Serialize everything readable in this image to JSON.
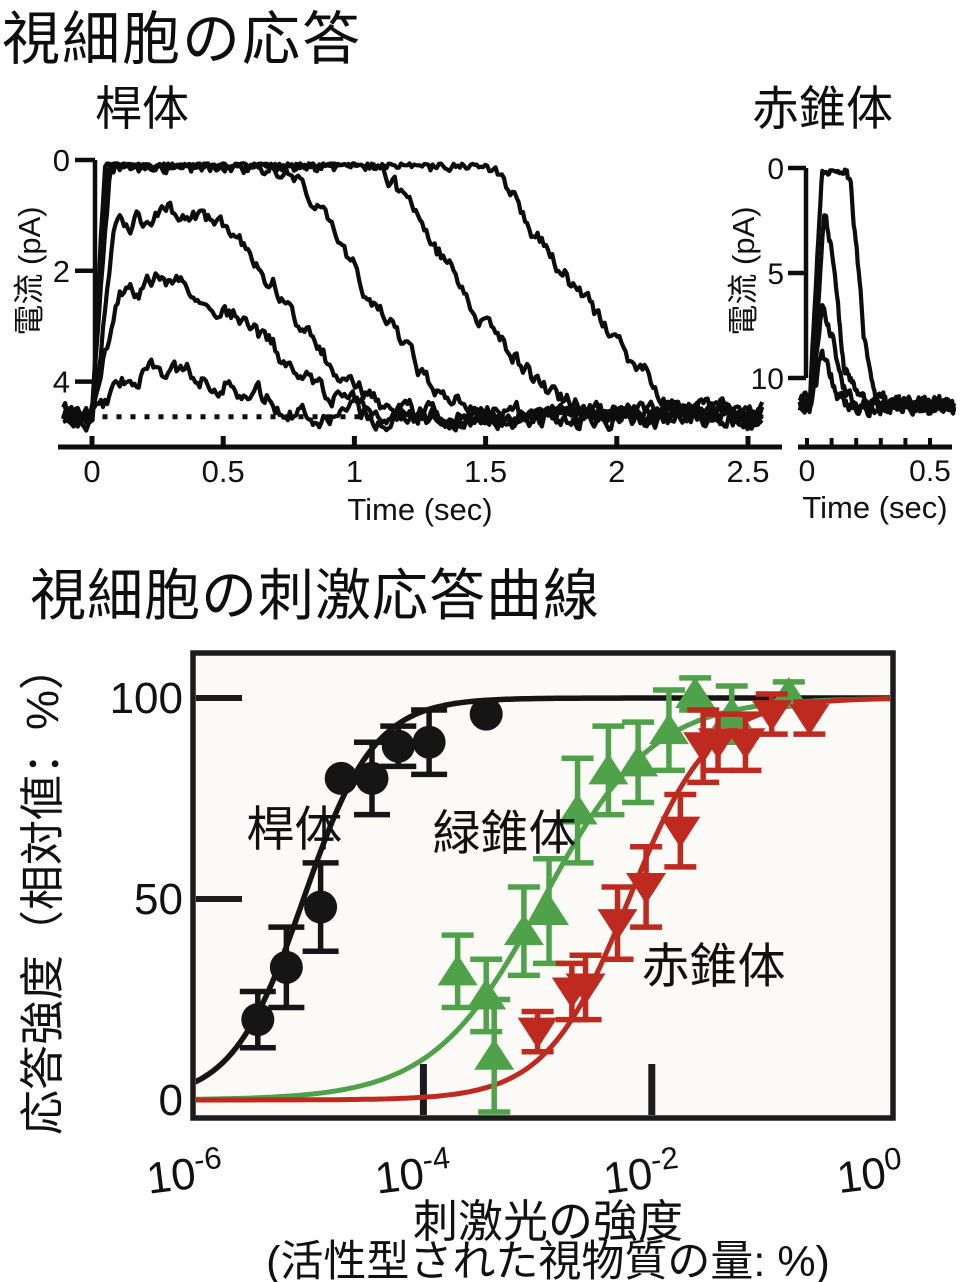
{
  "titles": {
    "main": "視細胞の応答",
    "rod": "桿体",
    "red_cone": "赤錐体",
    "section2": "視細胞の刺激応答曲線"
  },
  "colors": {
    "trace_black": "#0d0d0d",
    "rod_series": "#151515",
    "green_cone_series": "#4fa24a",
    "red_cone_series": "#bf2a20",
    "frame": "#1c1c1c",
    "plot_bg": "#fbfaf6"
  },
  "chart_data": [
    {
      "id": "rod_current_traces",
      "type": "line",
      "title": "桿体",
      "xlabel": "Time (sec)",
      "ylabel": "電流 (pA)",
      "xlim": [
        0,
        2.5
      ],
      "xticks": [
        0,
        0.5,
        1,
        1.5,
        2,
        2.5
      ],
      "xtick_labels": [
        "0",
        "0.5",
        "1",
        "1.5",
        "2",
        "2.5"
      ],
      "yticks": [
        0,
        2,
        4
      ],
      "ytick_labels": [
        "0",
        "2",
        "4"
      ],
      "y_axis_inverted_note": "0 pA at top, 4 pA lower; responses rise toward 0",
      "baseline_pA": 4.6,
      "noise_pA": 0.12,
      "t_start": -0.11,
      "t_end": 2.56,
      "dt": 0.008,
      "dotted_baseline": {
        "t_start": 0.04,
        "t_end": 1.09
      },
      "traces": [
        {
          "peak_pA": 0.8,
          "keys": [
            [
              0,
              0
            ],
            [
              0.15,
              0.72
            ],
            [
              0.3,
              0.8
            ],
            [
              0.5,
              0.62
            ],
            [
              0.75,
              0.1
            ],
            [
              0.92,
              0
            ]
          ]
        },
        {
          "peak_pA": 2.45,
          "keys": [
            [
              0,
              0
            ],
            [
              0.1,
              2.2
            ],
            [
              0.3,
              2.45
            ],
            [
              0.55,
              1.8
            ],
            [
              0.85,
              0.5
            ],
            [
              1.05,
              0
            ]
          ]
        },
        {
          "peak_pA": 3.7,
          "keys": [
            [
              0,
              0
            ],
            [
              0.09,
              3.4
            ],
            [
              0.35,
              3.7
            ],
            [
              0.6,
              3.0
            ],
            [
              0.95,
              0.6
            ],
            [
              1.2,
              0
            ]
          ]
        },
        {
          "peak_pA": 4.6,
          "keys": [
            [
              0,
              0
            ],
            [
              0.07,
              4.55
            ],
            [
              0.75,
              4.5
            ],
            [
              1.05,
              2.2
            ],
            [
              1.3,
              0.4
            ],
            [
              1.5,
              0
            ]
          ]
        },
        {
          "peak_pA": 4.6,
          "keys": [
            [
              0,
              0
            ],
            [
              0.06,
              4.6
            ],
            [
              1.1,
              4.55
            ],
            [
              1.45,
              2.0
            ],
            [
              1.75,
              0.3
            ],
            [
              1.95,
              0
            ]
          ]
        },
        {
          "peak_pA": 4.6,
          "keys": [
            [
              0,
              0
            ],
            [
              0.05,
              4.6
            ],
            [
              1.5,
              4.55
            ],
            [
              1.95,
              1.6
            ],
            [
              2.2,
              0.25
            ],
            [
              2.45,
              0
            ]
          ]
        }
      ]
    },
    {
      "id": "red_cone_current_traces",
      "type": "line",
      "title": "赤錐体",
      "xlabel": "Time (sec)",
      "ylabel": "電流 (pA)",
      "xlim": [
        0,
        0.5
      ],
      "xticks": [
        0,
        0.1,
        0.2,
        0.3,
        0.4,
        0.5
      ],
      "xtick_labels": [
        "0",
        "",
        "",
        "",
        "",
        "0.5"
      ],
      "yticks": [
        0,
        5,
        10
      ],
      "ytick_labels": [
        "0",
        "5",
        "10"
      ],
      "baseline_pA": 11.3,
      "noise_pA": 0.22,
      "t_start": -0.03,
      "t_end": 0.6,
      "dt": 0.004,
      "traces": [
        {
          "peak_pA": 11.3,
          "keys": [
            [
              0.01,
              0
            ],
            [
              0.06,
              10.9
            ],
            [
              0.09,
              11.3
            ],
            [
              0.12,
              11.1
            ],
            [
              0.15,
              11.3
            ],
            [
              0.18,
              10.2
            ],
            [
              0.23,
              3.5
            ],
            [
              0.28,
              0.6
            ],
            [
              0.33,
              0
            ]
          ]
        },
        {
          "peak_pA": 9.1,
          "keys": [
            [
              0.015,
              0
            ],
            [
              0.07,
              9.1
            ],
            [
              0.1,
              7.5
            ],
            [
              0.15,
              2.0
            ],
            [
              0.2,
              0.4
            ],
            [
              0.25,
              0
            ]
          ]
        },
        {
          "peak_pA": 4.8,
          "keys": [
            [
              0.015,
              0
            ],
            [
              0.065,
              4.8
            ],
            [
              0.1,
              3.2
            ],
            [
              0.15,
              0.8
            ],
            [
              0.19,
              0
            ]
          ]
        },
        {
          "peak_pA": 2.5,
          "keys": [
            [
              0.02,
              0
            ],
            [
              0.06,
              2.5
            ],
            [
              0.09,
              1.6
            ],
            [
              0.13,
              0.4
            ],
            [
              0.17,
              0
            ]
          ]
        }
      ]
    },
    {
      "id": "stimulus_response_curves",
      "type": "scatter",
      "title": "視細胞の刺激応答曲線",
      "xlabel_line1": "刺激光の強度",
      "xlabel_line2": "(活性型された視物質の量: %)",
      "ylabel": "応答強度（相対値：%）",
      "x_scale": "log10",
      "xlim_log": [
        -6.0,
        0.0
      ],
      "ylim": [
        0,
        100
      ],
      "xticks": [
        {
          "log": -6,
          "base": "10",
          "exp": "-6"
        },
        {
          "log": -4,
          "base": "10",
          "exp": "-4"
        },
        {
          "log": -2,
          "base": "10",
          "exp": "-2"
        },
        {
          "log": 0,
          "base": "10",
          "exp": "0"
        }
      ],
      "yticks": [
        {
          "value": 100,
          "label": "100"
        },
        {
          "value": 50,
          "label": "50"
        },
        {
          "value": 0,
          "label": "0"
        }
      ],
      "series": [
        {
          "name": "桿体",
          "marker": "circle",
          "color": "#151515",
          "sigmoid": {
            "half_log": -5.05,
            "hill": 1.4,
            "max": 100
          },
          "points": [
            {
              "log": -5.45,
              "y": 20,
              "err": 7
            },
            {
              "log": -5.2,
              "y": 33,
              "err": 10
            },
            {
              "log": -4.9,
              "y": 48,
              "err": 11
            },
            {
              "log": -4.72,
              "y": 80,
              "err": 0
            },
            {
              "log": -4.45,
              "y": 80,
              "err": 9
            },
            {
              "log": -4.22,
              "y": 88,
              "err": 5
            },
            {
              "log": -3.95,
              "y": 89,
              "err": 8
            },
            {
              "log": -3.45,
              "y": 96,
              "err": 0
            }
          ]
        },
        {
          "name": "緑錐体",
          "marker": "triangle-up",
          "color": "#4fa24a",
          "sigmoid": {
            "half_log": -2.95,
            "hill": 0.9,
            "max": 100
          },
          "points": [
            {
              "log": -3.7,
              "y": 32,
              "err": 9
            },
            {
              "log": -3.45,
              "y": 26,
              "err": 9
            },
            {
              "log": -3.38,
              "y": 11,
              "err": 14
            },
            {
              "log": -3.12,
              "y": 42,
              "err": 11
            },
            {
              "log": -2.9,
              "y": 47,
              "err": 13
            },
            {
              "log": -2.65,
              "y": 72,
              "err": 13
            },
            {
              "log": -2.38,
              "y": 82,
              "err": 11
            },
            {
              "log": -2.12,
              "y": 84,
              "err": 10
            },
            {
              "log": -1.85,
              "y": 92,
              "err": 10
            },
            {
              "log": -1.62,
              "y": 101,
              "err": 4
            },
            {
              "log": -1.3,
              "y": 96,
              "err": 7
            },
            {
              "log": -0.8,
              "y": 101,
              "err": 3
            }
          ]
        },
        {
          "name": "赤錐体",
          "marker": "triangle-down",
          "color": "#bf2a20",
          "sigmoid": {
            "half_log": -2.2,
            "hill": 1.2,
            "max": 100
          },
          "points": [
            {
              "log": -3.0,
              "y": 17,
              "err": 5
            },
            {
              "log": -2.7,
              "y": 27,
              "err": 7
            },
            {
              "log": -2.58,
              "y": 28,
              "err": 8
            },
            {
              "log": -2.3,
              "y": 44,
              "err": 9
            },
            {
              "log": -2.05,
              "y": 53,
              "err": 10
            },
            {
              "log": -1.75,
              "y": 67,
              "err": 9
            },
            {
              "log": -1.55,
              "y": 88,
              "err": 9
            },
            {
              "log": -1.42,
              "y": 89,
              "err": 7
            },
            {
              "log": -1.18,
              "y": 89,
              "err": 7
            },
            {
              "log": -0.95,
              "y": 96,
              "err": 5
            },
            {
              "log": -0.62,
              "y": 95,
              "err": 4
            }
          ]
        }
      ],
      "inplot_labels": [
        {
          "text": "桿体",
          "log": -5.13,
          "pct": 67.5
        },
        {
          "text": "緑錐体",
          "log": -3.29,
          "pct": 66.5
        },
        {
          "text": "赤錐体",
          "log": -1.46,
          "pct": 33.5
        }
      ]
    }
  ]
}
